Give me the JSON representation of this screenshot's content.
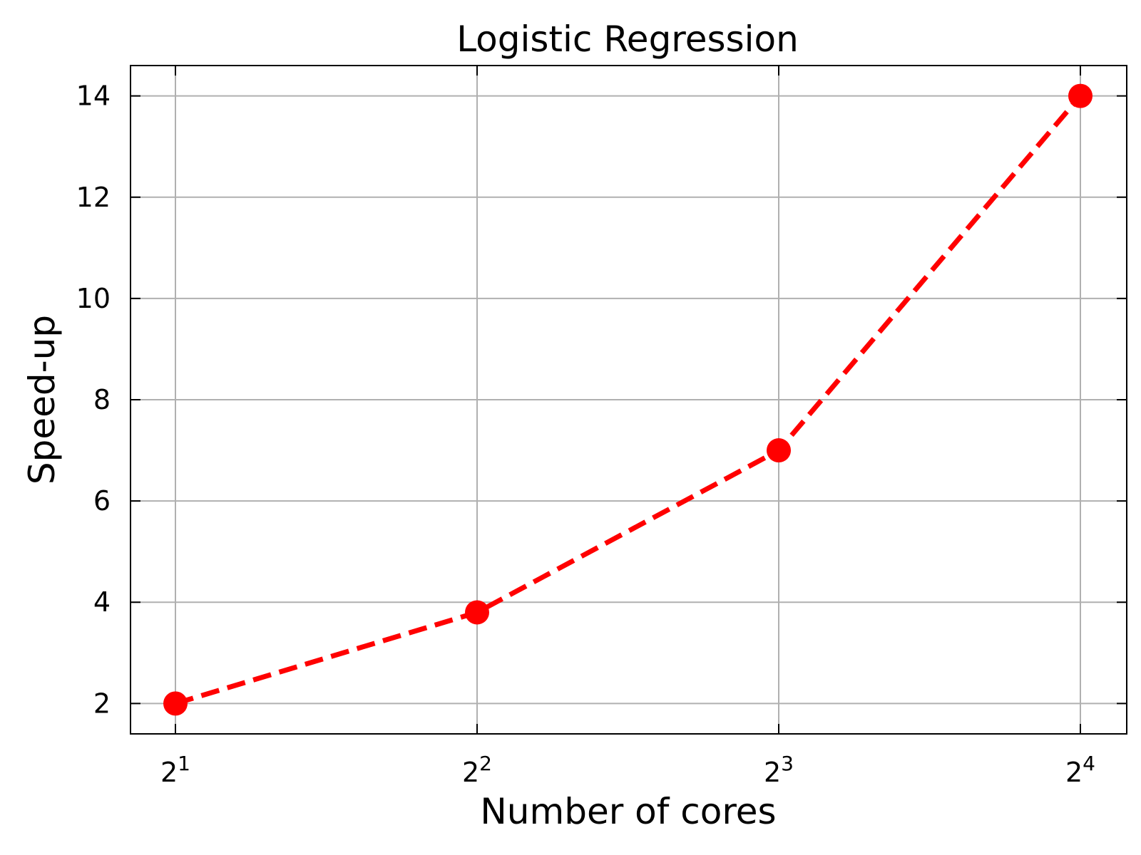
{
  "chart_data": {
    "type": "line",
    "title": "Logistic Regression",
    "xlabel": "Number of cores",
    "ylabel": "Speed-up",
    "x_scale": "log2",
    "x": [
      2,
      4,
      8,
      16
    ],
    "x_tick_labels": [
      {
        "base": "2",
        "exp": "1"
      },
      {
        "base": "2",
        "exp": "2"
      },
      {
        "base": "2",
        "exp": "3"
      },
      {
        "base": "2",
        "exp": "4"
      }
    ],
    "y_ticks": [
      2,
      4,
      6,
      8,
      10,
      12,
      14
    ],
    "y_tick_labels": [
      "2",
      "4",
      "6",
      "8",
      "10",
      "12",
      "14"
    ],
    "ylim": [
      1.4,
      14.6
    ],
    "grid": true,
    "series": [
      {
        "values": [
          2.0,
          3.8,
          7.0,
          14.0
        ],
        "color": "#ff0000",
        "line_style": "dashed",
        "marker": "circle"
      }
    ]
  }
}
